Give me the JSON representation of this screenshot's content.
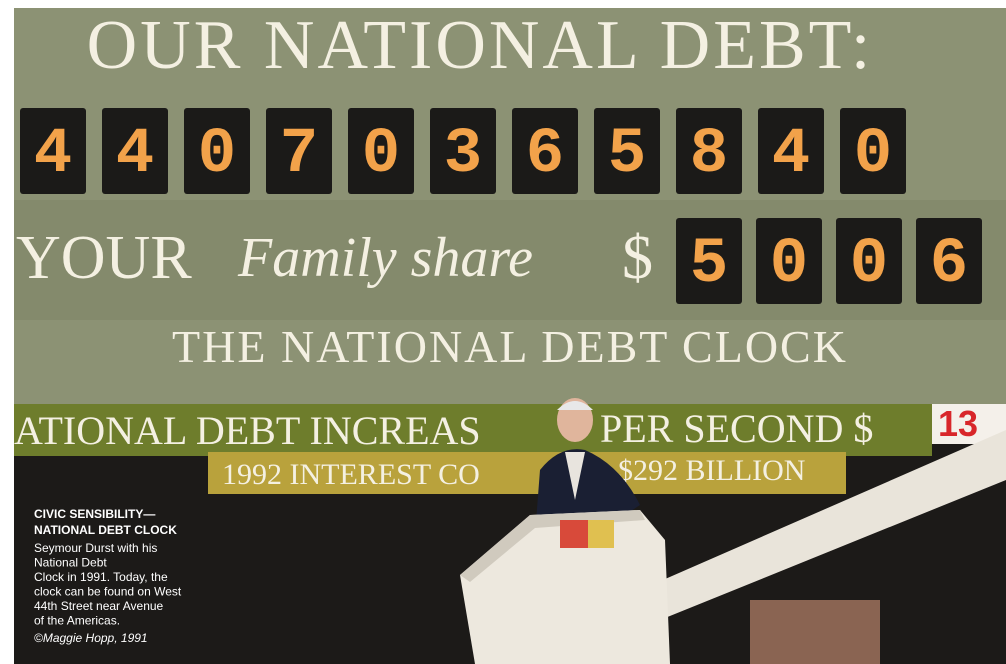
{
  "sign": {
    "headline": "OUR NATIONAL DEBT:",
    "debt_digits": [
      "4",
      "4",
      "0",
      "7",
      "0",
      "3",
      "6",
      "5",
      "8",
      "4",
      "0"
    ],
    "your": "YOUR",
    "family_share": "Family share",
    "dollar": "$",
    "share_digits": [
      "5",
      "0",
      "0",
      "6"
    ],
    "clock_name": "THE NATIONAL DEBT CLOCK",
    "increase_left": "ATIONAL DEBT INCREAS",
    "increase_right": "PER SECOND $",
    "increase_digits": "13",
    "interest_left": "1992 INTEREST CO",
    "interest_right": "$292 BILLION"
  },
  "caption": {
    "title": [
      "CIVIC SENSIBILITY—",
      "NATIONAL DEBT CLOCK"
    ],
    "body": [
      "Seymour Durst with his",
      "National Debt",
      "Clock in 1991. Today, the",
      "clock can be found on West",
      "44th Street near Avenue",
      "of the Americas."
    ],
    "credit": "©Maggie Hopp, 1991"
  }
}
